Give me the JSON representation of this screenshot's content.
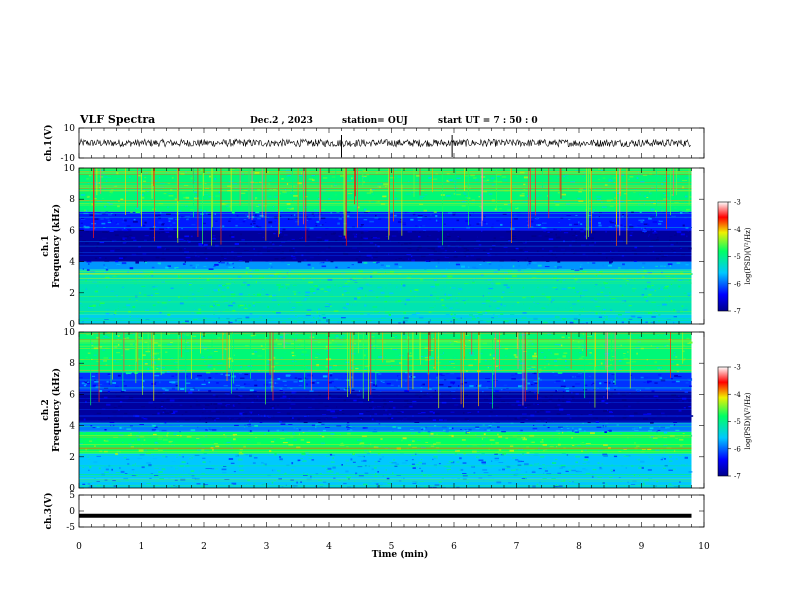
{
  "header": {
    "title": "VLF Spectra",
    "date": "Dec.2  , 2023",
    "station": "station= OUJ",
    "start": "start  UT  =   7 : 50 : 0"
  },
  "colors": {
    "ch3_trace": "#000000",
    "ch1_trace": "#000000"
  },
  "chart_data": [
    {
      "type": "line",
      "name": "ch1-waveform",
      "ylabel": "ch.1(V)",
      "xlim": [
        0,
        10
      ],
      "ylim": [
        -10,
        10
      ],
      "yticks": [
        "10",
        "-10"
      ],
      "series": [
        {
          "x": [
            0,
            9.8
          ],
          "y": [
            0,
            0
          ]
        }
      ],
      "spikes_x": [
        4.2,
        5.97
      ]
    },
    {
      "type": "heatmap",
      "name": "ch1-spectrogram",
      "ylabel": "ch.1\nFrequency  (kHz)",
      "xlim": [
        0,
        10
      ],
      "ylim": [
        0,
        10
      ],
      "yticks": [
        "0",
        "2",
        "4",
        "6",
        "8",
        "10"
      ],
      "colorbar": {
        "label": "log(PSD)(V²/Hz)",
        "range": [
          -7,
          -3
        ],
        "ticks": [
          "-3",
          "-4",
          "-5",
          "-6",
          "-7"
        ]
      },
      "bands": [
        {
          "f": [
            0,
            0.6
          ],
          "level": -5.5
        },
        {
          "f": [
            0.6,
            3.5
          ],
          "level": -5.2
        },
        {
          "f": [
            3.5,
            4.0
          ],
          "level": -5.8
        },
        {
          "f": [
            4.0,
            6.0
          ],
          "level": -6.9
        },
        {
          "f": [
            6.0,
            7.2
          ],
          "level": -6.3
        },
        {
          "f": [
            7.2,
            10
          ],
          "level": -4.9
        }
      ]
    },
    {
      "type": "heatmap",
      "name": "ch2-spectrogram",
      "ylabel": "ch.2\nFrequency  (kHz)",
      "xlim": [
        0,
        10
      ],
      "ylim": [
        0,
        10
      ],
      "yticks": [
        "0",
        "2",
        "4",
        "6",
        "8",
        "10"
      ],
      "colorbar": {
        "label": "log(PSD)(V²/Hz)",
        "range": [
          -7,
          -3
        ],
        "ticks": [
          "-3",
          "-4",
          "-5",
          "-6",
          "-7"
        ]
      },
      "bands": [
        {
          "f": [
            0,
            0.6
          ],
          "level": -5.6
        },
        {
          "f": [
            0.6,
            2.2
          ],
          "level": -5.6
        },
        {
          "f": [
            2.2,
            3.6
          ],
          "level": -4.8
        },
        {
          "f": [
            3.6,
            4.2
          ],
          "level": -5.9
        },
        {
          "f": [
            4.2,
            6.2
          ],
          "level": -6.9
        },
        {
          "f": [
            6.2,
            7.4
          ],
          "level": -6.2
        },
        {
          "f": [
            7.4,
            10
          ],
          "level": -4.9
        }
      ]
    },
    {
      "type": "line",
      "name": "ch3-waveform",
      "ylabel": "ch.3(V)",
      "xlim": [
        0,
        10
      ],
      "ylim": [
        -5,
        5
      ],
      "yticks": [
        "5",
        "0",
        "-5"
      ],
      "series": [
        {
          "x": [
            0,
            9.8
          ],
          "y": [
            -1.5,
            -1.5
          ]
        }
      ]
    }
  ],
  "xaxis": {
    "label": "Time  (min)",
    "ticks": [
      "0",
      "1",
      "2",
      "3",
      "4",
      "5",
      "6",
      "7",
      "8",
      "9",
      "10"
    ]
  }
}
